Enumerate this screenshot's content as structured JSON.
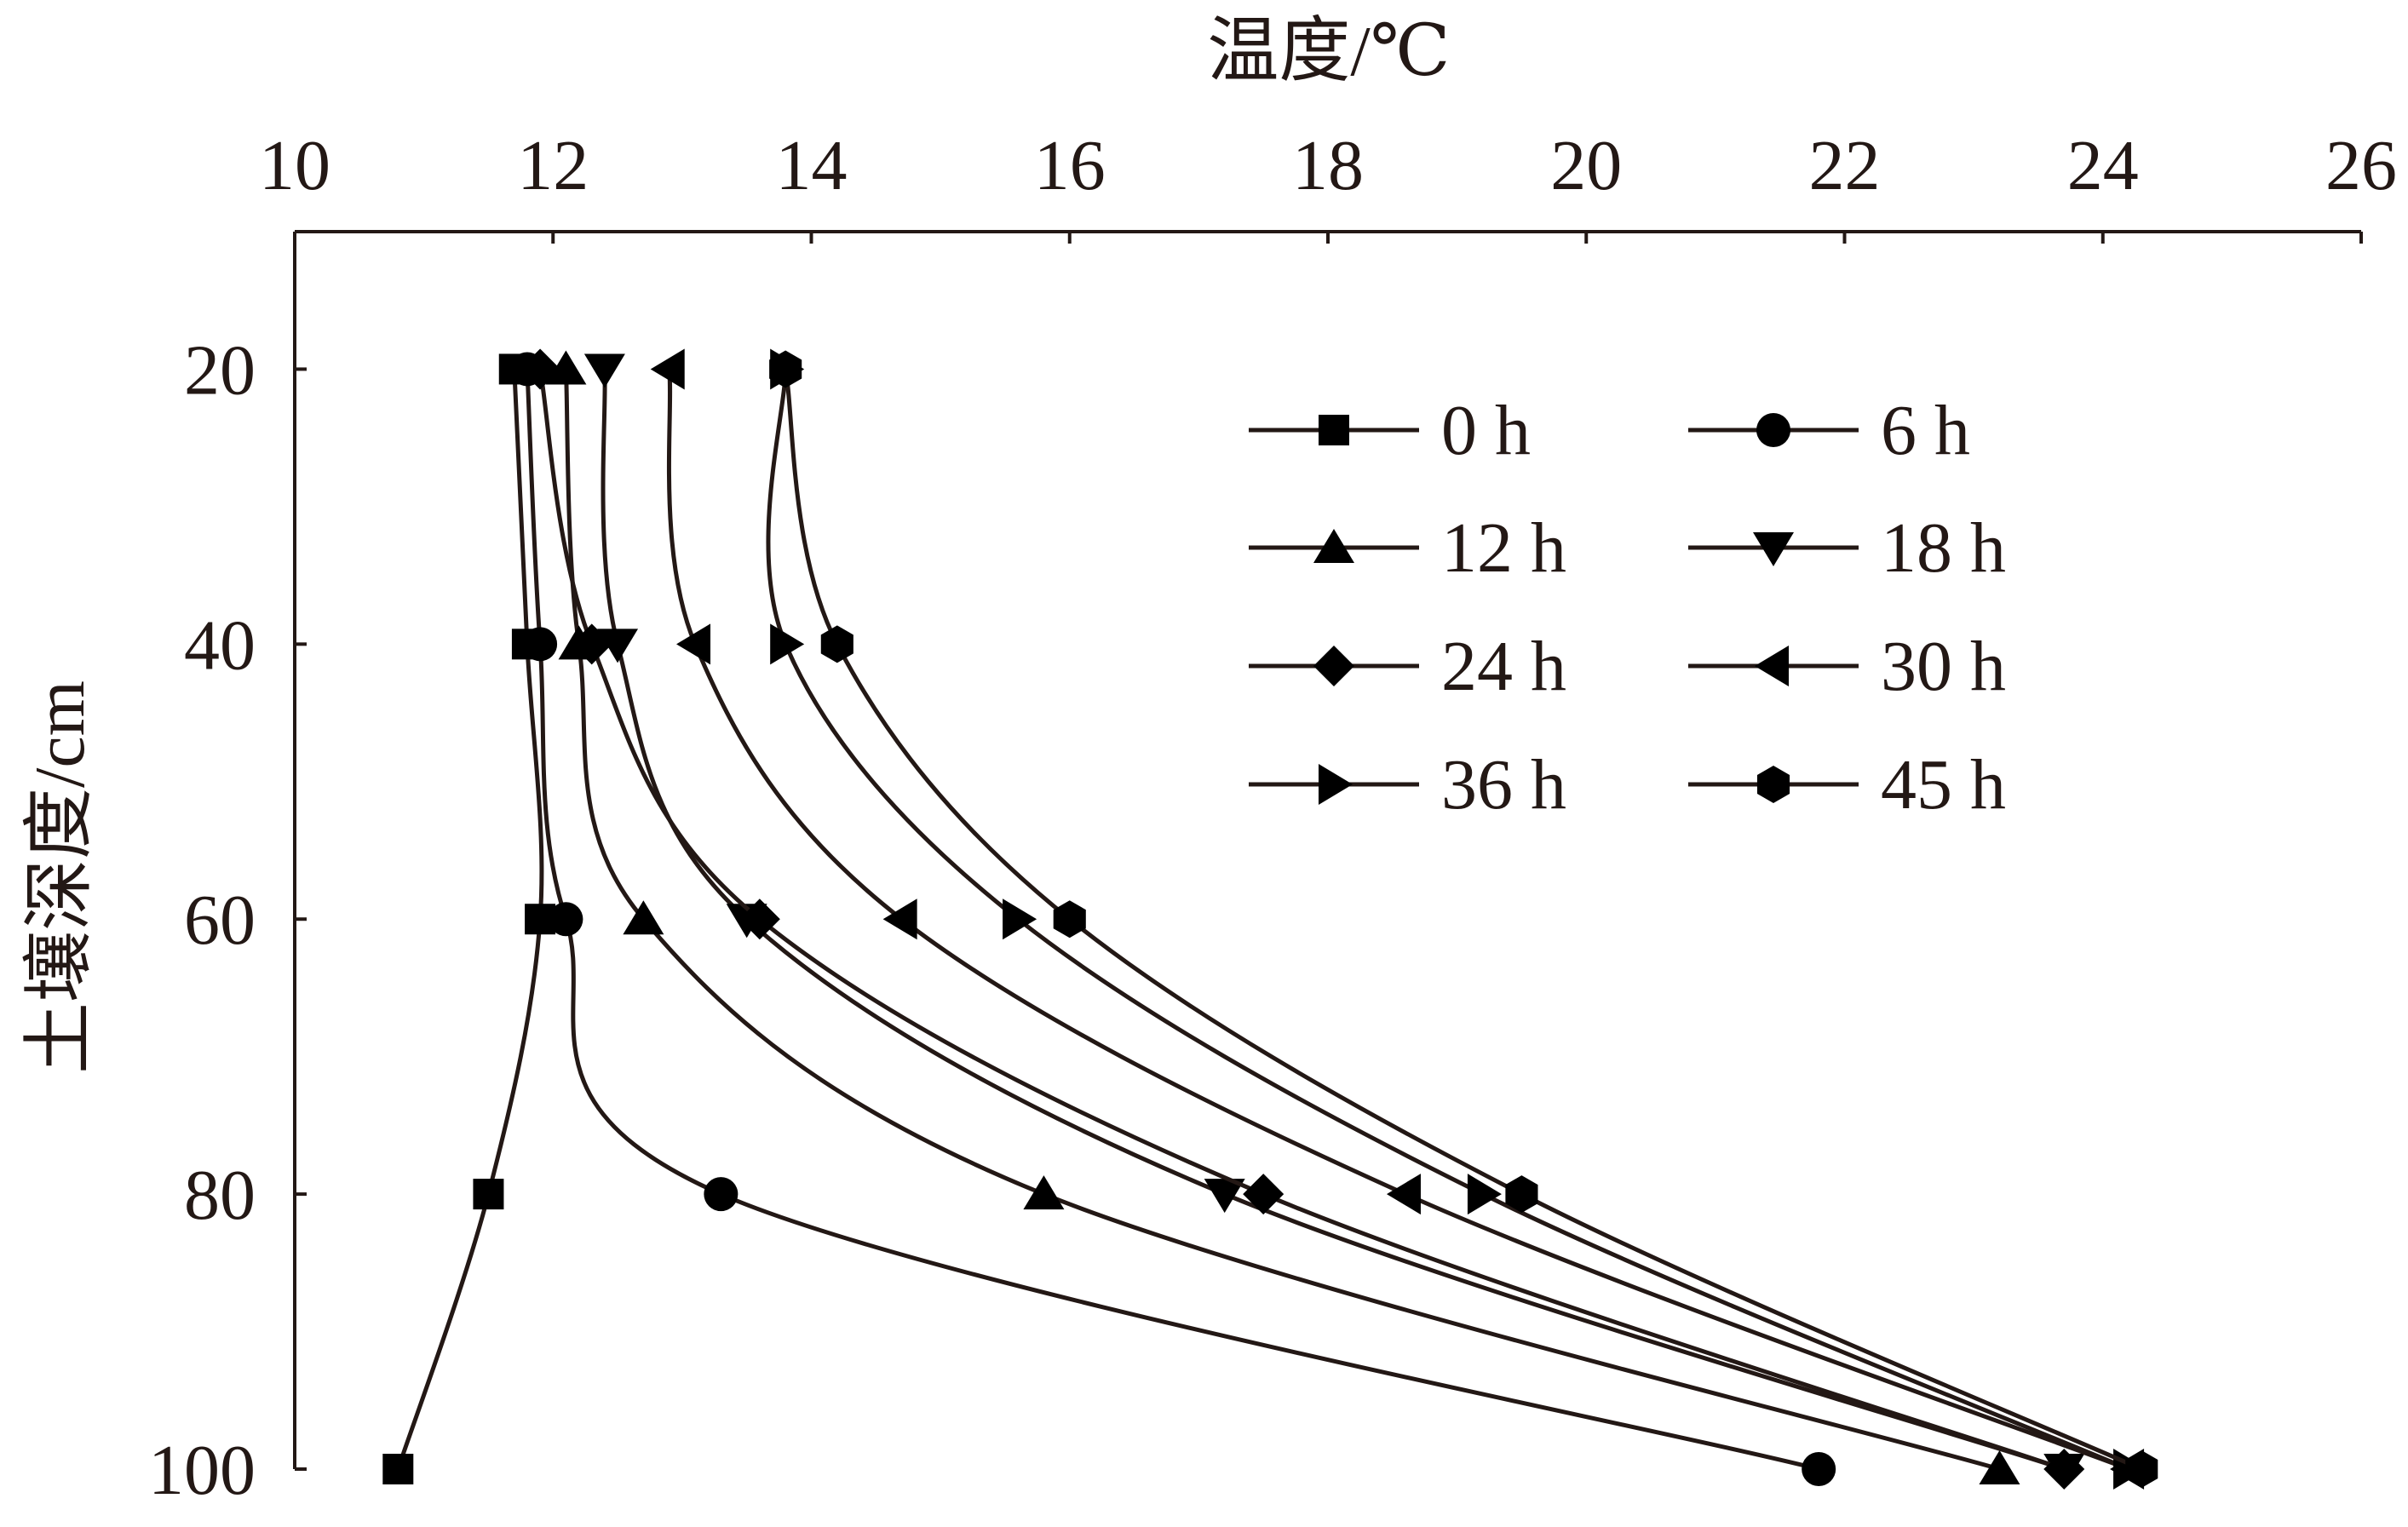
{
  "chart_data": {
    "type": "line",
    "title": "",
    "xlabel": "温度/℃",
    "ylabel": "土壤深度/cm",
    "x_axis_position": "top",
    "y_axis_inverted": true,
    "xlim": [
      10,
      26
    ],
    "ylim": [
      10,
      100
    ],
    "x_ticks": [
      10,
      12,
      14,
      16,
      18,
      20,
      22,
      24,
      26
    ],
    "y_ticks": [
      20,
      40,
      60,
      80,
      100
    ],
    "grid": false,
    "legend_position": "top-right",
    "depths": [
      20,
      40,
      60,
      80,
      100
    ],
    "series": [
      {
        "name": "0 h",
        "marker": "square",
        "temperatures": [
          11.7,
          11.8,
          11.9,
          11.5,
          10.8
        ]
      },
      {
        "name": "6 h",
        "marker": "circle",
        "temperatures": [
          11.8,
          11.9,
          12.1,
          13.3,
          21.8
        ]
      },
      {
        "name": "12 h",
        "marker": "triangle-up",
        "temperatures": [
          12.1,
          12.2,
          12.7,
          15.8,
          23.2
        ]
      },
      {
        "name": "18 h",
        "marker": "triangle-down",
        "temperatures": [
          12.4,
          12.5,
          13.5,
          17.2,
          23.7
        ]
      },
      {
        "name": "24 h",
        "marker": "diamond",
        "temperatures": [
          11.9,
          12.3,
          13.6,
          17.5,
          23.7
        ]
      },
      {
        "name": "30 h",
        "marker": "triangle-left",
        "temperatures": [
          12.9,
          13.1,
          14.7,
          18.6,
          24.2
        ]
      },
      {
        "name": "36 h",
        "marker": "triangle-right",
        "temperatures": [
          13.8,
          13.8,
          15.6,
          19.2,
          24.2
        ]
      },
      {
        "name": "45 h",
        "marker": "hexagon",
        "temperatures": [
          13.8,
          14.2,
          16.0,
          19.5,
          24.3
        ]
      }
    ],
    "colors": {
      "line": "#231815",
      "marker": "#000000"
    }
  }
}
